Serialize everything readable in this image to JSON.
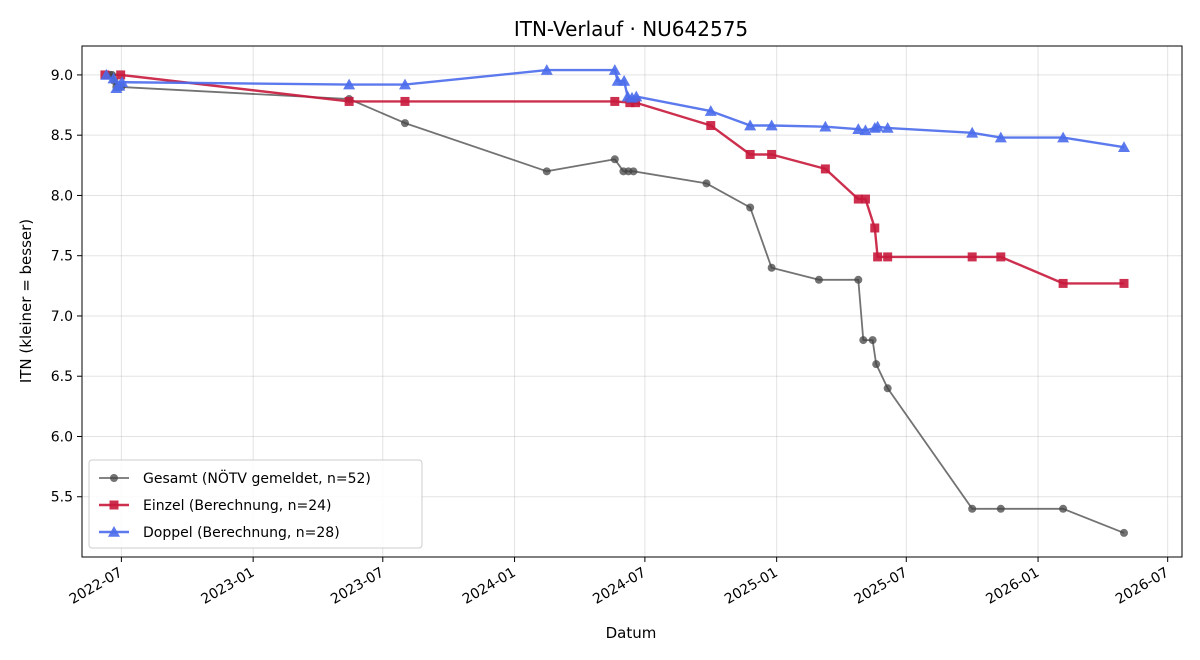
{
  "chart_data": {
    "type": "line",
    "title": "ITN-Verlauf · NU642575",
    "xlabel": "Datum",
    "ylabel": "ITN  (kleiner = besser)",
    "xlim": [
      "2022-05-07",
      "2026-07-21"
    ],
    "ylim": [
      5.0,
      9.24
    ],
    "x_ticks": [
      "2022-07",
      "2023-01",
      "2023-07",
      "2024-01",
      "2024-07",
      "2025-01",
      "2025-07",
      "2026-01",
      "2026-07"
    ],
    "y_ticks": [
      5.5,
      6.0,
      6.5,
      7.0,
      7.5,
      8.0,
      8.5,
      9.0
    ],
    "grid": true,
    "legend": "lower-left",
    "series": [
      {
        "name": "Gesamt (NÖTV gemeldet, n=52)",
        "color": "#444444",
        "marker": "circle",
        "points": [
          [
            "2022-06-15",
            9.0
          ],
          [
            "2022-06-18",
            9.0
          ],
          [
            "2022-06-21",
            8.95
          ],
          [
            "2022-06-24",
            8.9
          ],
          [
            "2022-06-27",
            8.9
          ],
          [
            "2022-07-01",
            8.9
          ],
          [
            "2023-05-15",
            8.8
          ],
          [
            "2023-08-01",
            8.6
          ],
          [
            "2024-02-15",
            8.2
          ],
          [
            "2024-05-20",
            8.3
          ],
          [
            "2024-06-01",
            8.2
          ],
          [
            "2024-06-08",
            8.2
          ],
          [
            "2024-06-15",
            8.2
          ],
          [
            "2024-09-25",
            8.1
          ],
          [
            "2024-11-25",
            7.9
          ],
          [
            "2024-12-25",
            7.4
          ],
          [
            "2025-03-01",
            7.3
          ],
          [
            "2025-04-25",
            7.3
          ],
          [
            "2025-05-02",
            6.8
          ],
          [
            "2025-05-15",
            6.8
          ],
          [
            "2025-05-20",
            6.6
          ],
          [
            "2025-06-05",
            6.4
          ],
          [
            "2025-10-01",
            5.4
          ],
          [
            "2025-11-10",
            5.4
          ],
          [
            "2026-02-05",
            5.4
          ],
          [
            "2026-05-01",
            5.2
          ]
        ]
      },
      {
        "name": "Einzel (Berechnung, n=24)",
        "color": "#C8193C",
        "marker": "square",
        "points": [
          [
            "2022-06-08",
            9.0
          ],
          [
            "2022-06-30",
            9.0
          ],
          [
            "2023-05-15",
            8.78
          ],
          [
            "2023-08-01",
            8.78
          ],
          [
            "2024-05-20",
            8.78
          ],
          [
            "2024-06-10",
            8.77
          ],
          [
            "2024-06-18",
            8.77
          ],
          [
            "2024-10-01",
            8.58
          ],
          [
            "2024-11-25",
            8.34
          ],
          [
            "2024-12-25",
            8.34
          ],
          [
            "2025-03-10",
            8.22
          ],
          [
            "2025-04-25",
            7.97
          ],
          [
            "2025-05-05",
            7.97
          ],
          [
            "2025-05-18",
            7.73
          ],
          [
            "2025-05-22",
            7.49
          ],
          [
            "2025-06-05",
            7.49
          ],
          [
            "2025-10-01",
            7.49
          ],
          [
            "2025-11-10",
            7.49
          ],
          [
            "2026-02-05",
            7.27
          ],
          [
            "2026-05-01",
            7.27
          ]
        ]
      },
      {
        "name": "Doppel (Berechnung, n=28)",
        "color": "#4A6CEB",
        "marker": "triangle",
        "points": [
          [
            "2022-06-10",
            9.0
          ],
          [
            "2022-06-20",
            8.97
          ],
          [
            "2022-06-24",
            8.89
          ],
          [
            "2022-06-28",
            8.91
          ],
          [
            "2022-07-02",
            8.94
          ],
          [
            "2023-05-15",
            8.92
          ],
          [
            "2023-08-01",
            8.92
          ],
          [
            "2024-02-15",
            9.04
          ],
          [
            "2024-05-20",
            9.04
          ],
          [
            "2024-05-24",
            8.95
          ],
          [
            "2024-06-02",
            8.95
          ],
          [
            "2024-06-07",
            8.82
          ],
          [
            "2024-06-13",
            8.81
          ],
          [
            "2024-06-19",
            8.82
          ],
          [
            "2024-10-01",
            8.7
          ],
          [
            "2024-11-25",
            8.58
          ],
          [
            "2024-12-25",
            8.58
          ],
          [
            "2025-03-10",
            8.57
          ],
          [
            "2025-04-25",
            8.55
          ],
          [
            "2025-05-05",
            8.54
          ],
          [
            "2025-05-18",
            8.56
          ],
          [
            "2025-05-22",
            8.57
          ],
          [
            "2025-06-05",
            8.56
          ],
          [
            "2025-10-01",
            8.52
          ],
          [
            "2025-11-10",
            8.48
          ],
          [
            "2026-02-05",
            8.48
          ],
          [
            "2026-05-01",
            8.4
          ]
        ]
      }
    ]
  }
}
